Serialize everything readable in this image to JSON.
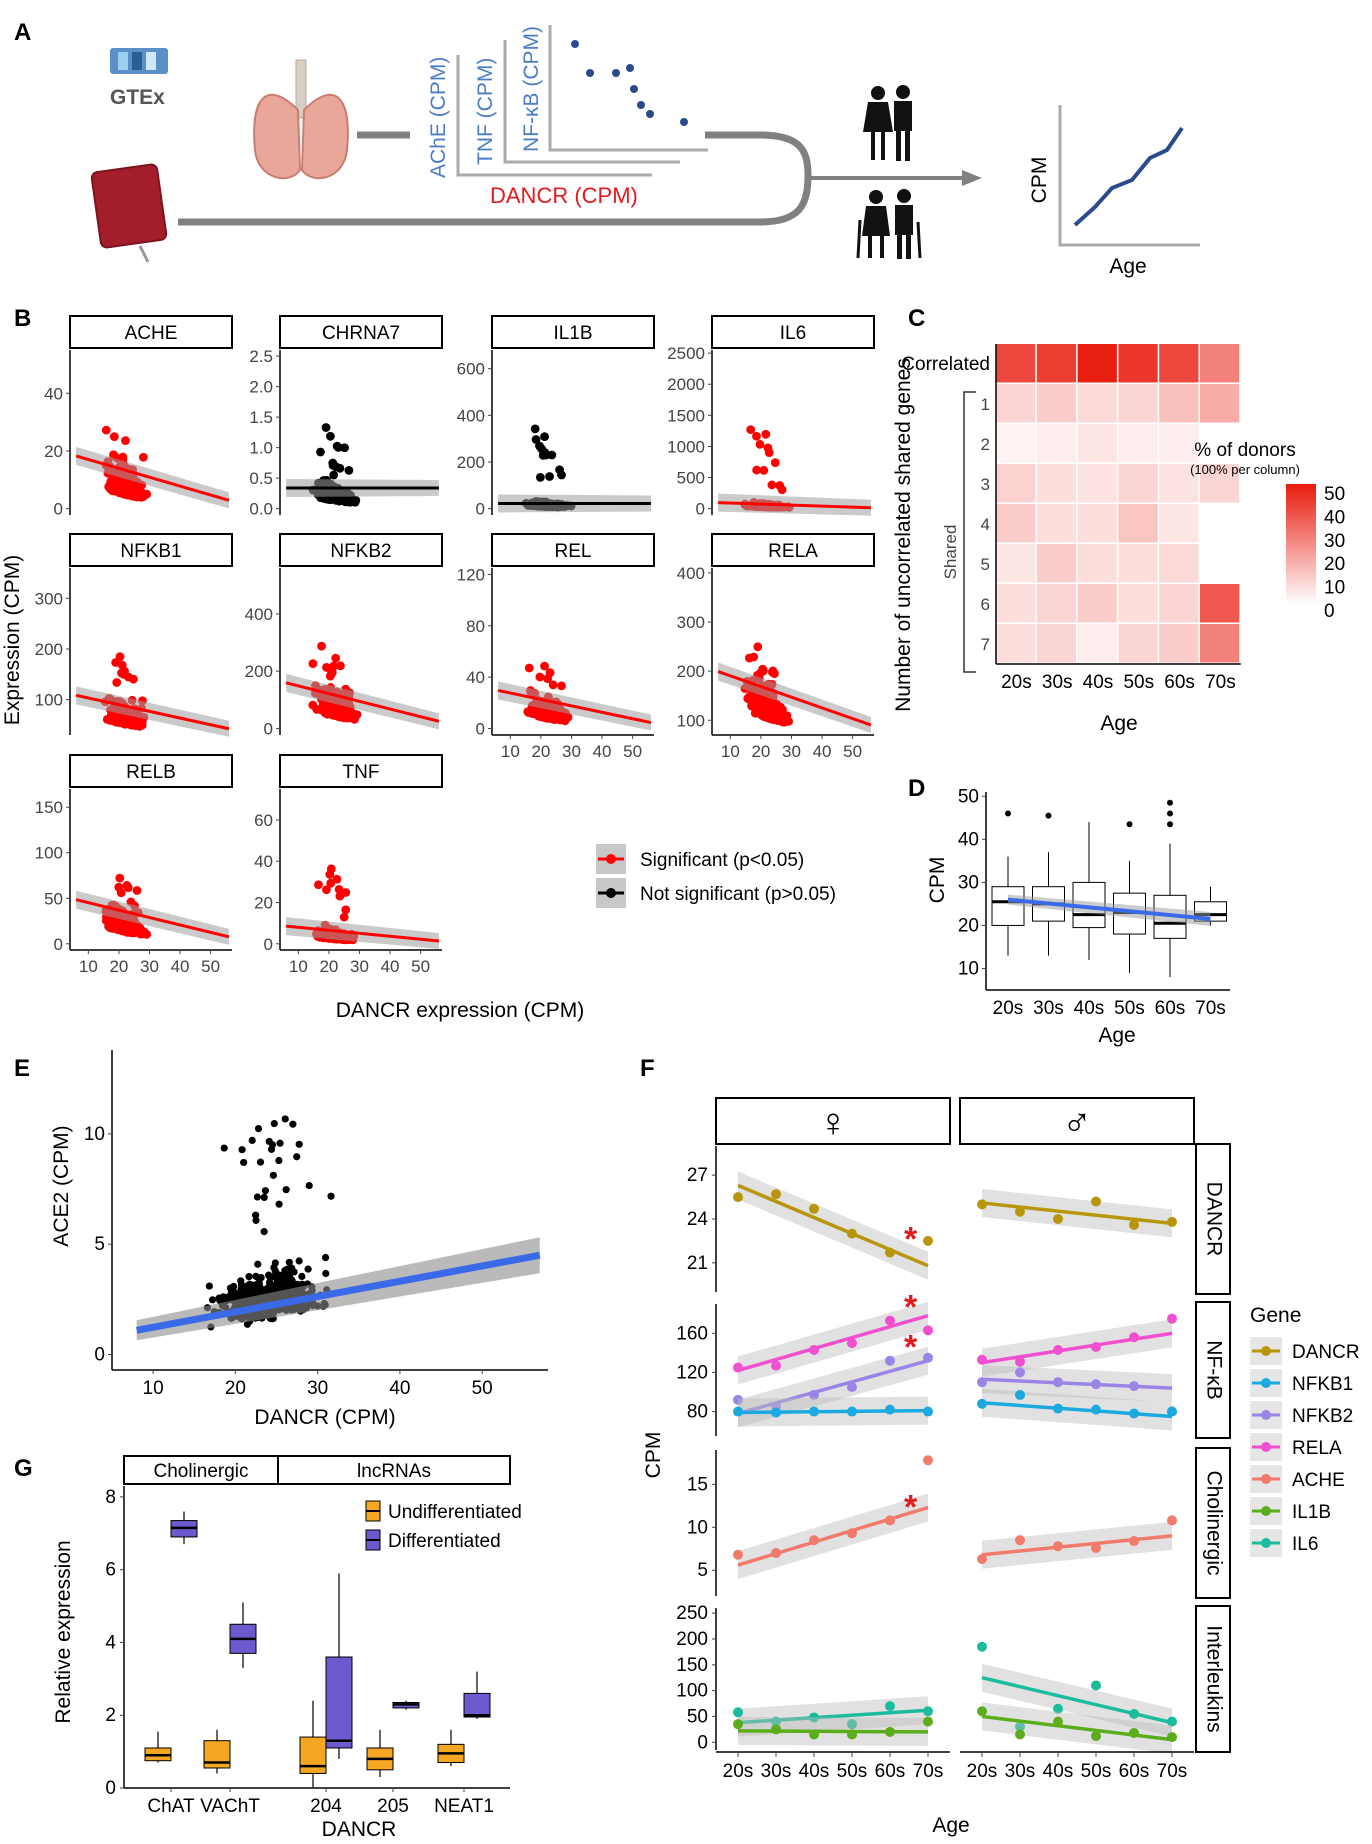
{
  "colors": {
    "sig": "#ff0000",
    "ns": "#000000",
    "blue": "#2b4a8c",
    "red": "#e31a1c",
    "lblue": "#4a7cc7",
    "reg": "#3b6ae8",
    "orange": "#f5a623",
    "purple": "#6a5acd"
  },
  "panelA": {
    "label": "A",
    "gtex": "GTEx",
    "axes": {
      "ache": "AChE (CPM)",
      "tnf": "TNF (CPM)",
      "nfkb": "NF-κB (CPM)",
      "dancr": "DANCR (CPM)"
    },
    "mini": {
      "ylabel": "CPM",
      "xlabel": "Age"
    }
  },
  "panelB": {
    "label": "B",
    "ylabel": "Expression (CPM)",
    "xlabel": "DANCR expression (CPM)",
    "xticks": [
      "10",
      "20",
      "30",
      "40",
      "50"
    ],
    "legend": [
      {
        "label": "Significant (p<0.05)",
        "color": "#ff0000"
      },
      {
        "label": "Not significant (p>0.05)",
        "color": "#000000"
      }
    ],
    "facets": [
      {
        "name": "ACHE",
        "sig": true,
        "yticks": [
          "0",
          "20",
          "40"
        ],
        "ymax": 55,
        "yfac": 0.35
      },
      {
        "name": "CHRNA7",
        "sig": false,
        "yticks": [
          "0.0",
          "0.5",
          "1.0",
          "1.5",
          "2.0",
          "2.5"
        ],
        "ymax": 2.6,
        "yfac": 0.2
      },
      {
        "name": "IL1B",
        "sig": false,
        "yticks": [
          "0",
          "200",
          "400",
          "600"
        ],
        "ymax": 680,
        "yfac": 0.05
      },
      {
        "name": "IL6",
        "sig": true,
        "yticks": [
          "0",
          "500",
          "1000",
          "1500",
          "2000",
          "2500"
        ],
        "ymax": 2550,
        "yfac": 0.04
      },
      {
        "name": "NFKB1",
        "sig": true,
        "yticks": [
          "100",
          "200",
          "300"
        ],
        "ymax": 360,
        "ymin": 30,
        "yfac": 0.25
      },
      {
        "name": "NFKB2",
        "sig": true,
        "yticks": [
          "0",
          "200",
          "400"
        ],
        "ymax": 560,
        "yfac": 0.3
      },
      {
        "name": "REL",
        "sig": true,
        "yticks": [
          "0",
          "40",
          "80",
          "120"
        ],
        "ymax": 125,
        "yfac": 0.25
      },
      {
        "name": "RELA",
        "sig": true,
        "yticks": [
          "100",
          "200",
          "300",
          "400"
        ],
        "ymax": 410,
        "ymin": 70,
        "yfac": 0.4
      },
      {
        "name": "RELB",
        "sig": true,
        "yticks": [
          "0",
          "50",
          "100",
          "150"
        ],
        "ymax": 170,
        "yfac": 0.3
      },
      {
        "name": "TNF",
        "sig": true,
        "yticks": [
          "0",
          "20",
          "40",
          "60"
        ],
        "ymax": 75,
        "yfac": 0.12
      }
    ]
  },
  "panelC": {
    "label": "C",
    "ylabel": "Number of uncorrelated shared genes",
    "shared": "Shared",
    "xlabel": "Age",
    "rows": [
      "Correlated",
      "1",
      "2",
      "3",
      "4",
      "5",
      "6",
      "7"
    ],
    "cols": [
      "20s",
      "30s",
      "40s",
      "50s",
      "60s",
      "70s"
    ],
    "values": [
      [
        44,
        46,
        54,
        48,
        44,
        30
      ],
      [
        10,
        12,
        9,
        10,
        15,
        20
      ],
      [
        3,
        4,
        6,
        4,
        4,
        0
      ],
      [
        11,
        8,
        7,
        10,
        7,
        10
      ],
      [
        12,
        8,
        8,
        14,
        6,
        0
      ],
      [
        6,
        12,
        8,
        8,
        9,
        0
      ],
      [
        8,
        10,
        12,
        8,
        10,
        40
      ],
      [
        8,
        10,
        4,
        10,
        12,
        30
      ]
    ],
    "legend": {
      "title": "% of donors",
      "subtitle": "(100% per column)",
      "ticks": [
        "50",
        "40",
        "30",
        "20",
        "10",
        "0"
      ]
    }
  },
  "panelD": {
    "label": "D",
    "ylabel": "CPM",
    "xlabel": "Age",
    "yticks": [
      "10",
      "20",
      "30",
      "40",
      "50"
    ],
    "cats": [
      "20s",
      "30s",
      "40s",
      "50s",
      "60s",
      "70s"
    ],
    "boxes": [
      {
        "min": 13,
        "q1": 20,
        "med": 25.5,
        "q3": 29,
        "max": 36,
        "out": [
          46
        ]
      },
      {
        "min": 13,
        "q1": 21,
        "med": 25,
        "q3": 29,
        "max": 37,
        "out": [
          45.5
        ]
      },
      {
        "min": 12,
        "q1": 19.5,
        "med": 22.5,
        "q3": 30,
        "max": 44,
        "out": []
      },
      {
        "min": 9,
        "q1": 18,
        "med": 23,
        "q3": 27.5,
        "max": 35,
        "out": [
          43.5
        ]
      },
      {
        "min": 8,
        "q1": 17,
        "med": 20.5,
        "q3": 27,
        "max": 39,
        "out": [
          43.5,
          46,
          48.5
        ]
      },
      {
        "min": 20,
        "q1": 21,
        "med": 22.5,
        "q3": 25.5,
        "max": 29,
        "out": []
      }
    ],
    "trend": [
      26,
      21.5
    ]
  },
  "panelE": {
    "label": "E",
    "ylabel": "ACE2 (CPM)",
    "xlabel": "DANCR (CPM)",
    "xticks": [
      "10",
      "20",
      "30",
      "40",
      "50"
    ],
    "yticks": [
      "0",
      "5",
      "10"
    ],
    "fit": {
      "x0": 8,
      "y0": 1.1,
      "x1": 57,
      "y1": 4.5
    }
  },
  "panelF": {
    "label": "F",
    "ylabel": "CPM",
    "xlabel": "Age",
    "cols": [
      "♀",
      "♂"
    ],
    "rows": [
      "DANCR",
      "NF-κB",
      "Cholinergic",
      "Interleukins"
    ],
    "xticks": [
      "20s",
      "30s",
      "40s",
      "50s",
      "60s",
      "70s"
    ],
    "legend": {
      "title": "Gene",
      "items": [
        {
          "name": "DANCR",
          "color": "#b8960b"
        },
        {
          "name": "NFKB1",
          "color": "#1ba9e0"
        },
        {
          "name": "NFKB2",
          "color": "#9a85e6"
        },
        {
          "name": "RELA",
          "color": "#f050d0"
        },
        {
          "name": "ACHE",
          "color": "#f27a6b"
        },
        {
          "name": "IL1B",
          "color": "#5cad1c"
        },
        {
          "name": "IL6",
          "color": "#1abc9c"
        }
      ]
    },
    "facets": [
      {
        "row": 0,
        "yticks": [
          "21",
          "24",
          "27"
        ],
        "ymin": 19,
        "ymax": 29,
        "female": [
          {
            "gene": "DANCR",
            "pts": [
              25.5,
              25.7,
              24.7,
              23,
              21.7,
              22.5
            ],
            "fit": [
              26.3,
              20.8
            ]
          }
        ],
        "male": [
          {
            "gene": "DANCR",
            "pts": [
              25,
              24.5,
              24,
              25.2,
              23.6,
              23.8
            ],
            "fit": [
              25.1,
              23.7
            ]
          }
        ],
        "stars": [
          4
        ]
      },
      {
        "row": 1,
        "yticks": [
          "80",
          "120",
          "160"
        ],
        "ymin": 55,
        "ymax": 190,
        "female": [
          {
            "gene": "RELA",
            "pts": [
              125,
              127,
              143,
              150,
              173,
              163
            ],
            "fit": [
              122,
              178
            ]
          },
          {
            "gene": "NFKB2",
            "pts": [
              92,
              85,
              97,
              105,
              132,
              135
            ],
            "fit": [
              78,
              132
            ]
          },
          {
            "gene": "NFKB1",
            "pts": [
              80,
              79,
              80,
              80,
              82,
              80
            ],
            "fit": [
              79,
              81
            ]
          }
        ],
        "male": [
          {
            "gene": "RELA",
            "pts": [
              133,
              131,
              143,
              146,
              156,
              175
            ],
            "fit": [
              130,
              160
            ]
          },
          {
            "gene": "NFKB2",
            "pts": [
              110,
              120,
              110,
              108,
              106,
              80
            ],
            "fit": [
              113,
              104
            ]
          },
          {
            "gene": "NFKB1",
            "pts": [
              88,
              97,
              83,
              82,
              78,
              80
            ],
            "fit": [
              89,
              75
            ]
          }
        ],
        "stars": [
          4,
          4
        ]
      },
      {
        "row": 2,
        "yticks": [
          "5",
          "10",
          "15"
        ],
        "ymin": 2,
        "ymax": 19,
        "female": [
          {
            "gene": "ACHE",
            "pts": [
              6.8,
              7,
              8.5,
              9.3,
              10.8,
              17.8
            ],
            "fit": [
              5.6,
              12.3
            ]
          }
        ],
        "male": [
          {
            "gene": "ACHE",
            "pts": [
              6.3,
              8.5,
              7.8,
              7.6,
              8.4,
              10.8
            ],
            "fit": [
              6.8,
              9
            ]
          }
        ],
        "stars": [
          4
        ]
      },
      {
        "row": 3,
        "yticks": [
          "0",
          "50",
          "100",
          "150",
          "200",
          "250"
        ],
        "ymin": -15,
        "ymax": 260,
        "female": [
          {
            "gene": "IL6",
            "pts": [
              58,
              40,
              48,
              35,
              70,
              60
            ],
            "fit": [
              38,
              62
            ]
          },
          {
            "gene": "IL1B",
            "pts": [
              35,
              25,
              15,
              15,
              20,
              40
            ],
            "fit": [
              22,
              20
            ]
          }
        ],
        "male": [
          {
            "gene": "IL6",
            "pts": [
              185,
              30,
              65,
              110,
              55,
              40
            ],
            "fit": [
              125,
              38
            ]
          },
          {
            "gene": "IL1B",
            "pts": [
              60,
              15,
              40,
              12,
              18,
              10
            ],
            "fit": [
              50,
              5
            ]
          }
        ],
        "stars": []
      }
    ]
  },
  "panelG": {
    "label": "G",
    "ylabel": "Relative expression",
    "yticks": [
      "0",
      "2",
      "4",
      "6",
      "8"
    ],
    "groups": [
      "Cholinergic",
      "lncRNAs"
    ],
    "xticks": [
      "ChAT",
      "VAChT",
      "204",
      "205",
      "NEAT1"
    ],
    "dancr": "DANCR",
    "legend": [
      {
        "label": "Undifferentiated",
        "color": "#f5a623"
      },
      {
        "label": "Differentiated",
        "color": "#6a5acd"
      }
    ],
    "boxes": [
      {
        "cat": 0,
        "kind": 0,
        "min": 0.7,
        "q1": 0.75,
        "med": 0.9,
        "q3": 1.1,
        "max": 1.55
      },
      {
        "cat": 0,
        "kind": 1,
        "min": 6.7,
        "q1": 6.9,
        "med": 7.15,
        "q3": 7.35,
        "max": 7.6
      },
      {
        "cat": 1,
        "kind": 0,
        "min": 0.4,
        "q1": 0.55,
        "med": 0.7,
        "q3": 1.3,
        "max": 1.6
      },
      {
        "cat": 1,
        "kind": 1,
        "min": 3.3,
        "q1": 3.7,
        "med": 4.1,
        "q3": 4.5,
        "max": 5.1
      },
      {
        "cat": 2,
        "kind": 0,
        "min": 0,
        "q1": 0.4,
        "med": 0.6,
        "q3": 1.4,
        "max": 2.4
      },
      {
        "cat": 2,
        "kind": 1,
        "min": 0.8,
        "q1": 1.1,
        "med": 1.3,
        "q3": 3.6,
        "max": 5.9
      },
      {
        "cat": 3,
        "kind": 0,
        "min": 0.3,
        "q1": 0.5,
        "med": 0.8,
        "q3": 1.1,
        "max": 1.6
      },
      {
        "cat": 3,
        "kind": 1,
        "min": 2.15,
        "q1": 2.2,
        "med": 2.3,
        "q3": 2.35,
        "max": 2.4
      },
      {
        "cat": 4,
        "kind": 0,
        "min": 0.6,
        "q1": 0.7,
        "med": 0.95,
        "q3": 1.2,
        "max": 1.6
      },
      {
        "cat": 4,
        "kind": 1,
        "min": 1.9,
        "q1": 1.95,
        "med": 2.0,
        "q3": 2.6,
        "max": 3.2
      }
    ]
  }
}
